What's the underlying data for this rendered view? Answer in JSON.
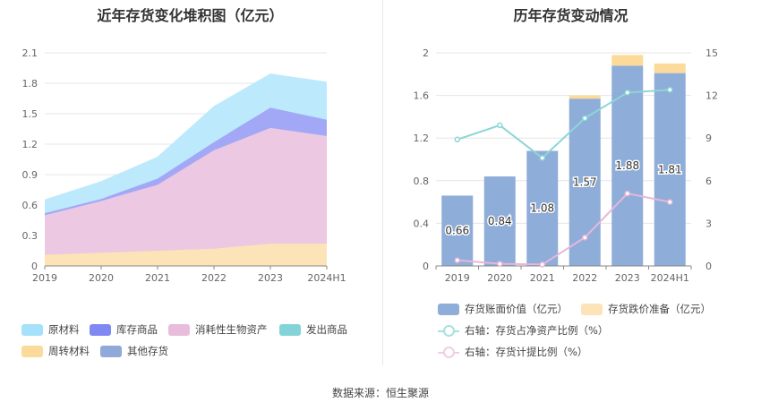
{
  "left": {
    "title": "近年存货变化堆积图（亿元）",
    "legend": [
      {
        "name": "原材料",
        "color": "#a6e1fb"
      },
      {
        "name": "库存商品",
        "color": "#8088f2"
      },
      {
        "name": "消耗性生物资产",
        "color": "#e8bddb"
      },
      {
        "name": "发出商品",
        "color": "#83d4d9"
      },
      {
        "name": "周转材料",
        "color": "#fcdb9a"
      },
      {
        "name": "其他存货",
        "color": "#8fa9d9"
      }
    ]
  },
  "right": {
    "title": "历年存货变动情况",
    "legend": [
      {
        "name": "存货账面价值（亿元）",
        "color": "#8fadd9"
      },
      {
        "name": "存货跌价准备（亿元）",
        "color": "#fde3b8"
      },
      {
        "name": "右轴：存货占净资产比例（%）",
        "color": "#8dd6d6"
      },
      {
        "name": "右轴：存货计提比例（%）",
        "color": "#e7b7d7"
      }
    ]
  },
  "source": "数据来源：恒生聚源",
  "chart_data": [
    {
      "type": "area",
      "title": "近年存货变化堆积图（亿元）",
      "categories": [
        "2019",
        "2020",
        "2021",
        "2022",
        "2023",
        "2024H1"
      ],
      "ylim": [
        0,
        2.1
      ],
      "yticks": [
        "0",
        "0.3",
        "0.6",
        "0.9",
        "1.2",
        "1.5",
        "1.8",
        "2.1"
      ],
      "stacked": true,
      "series": [
        {
          "name": "周转材料",
          "color": "#fde3b8",
          "values": [
            0.11,
            0.13,
            0.15,
            0.17,
            0.22,
            0.22
          ]
        },
        {
          "name": "消耗性生物资产",
          "color": "#ecc8e2",
          "values": [
            0.39,
            0.51,
            0.65,
            0.97,
            1.14,
            1.06
          ]
        },
        {
          "name": "库存商品",
          "color": "#a3a8f6",
          "values": [
            0.02,
            0.02,
            0.06,
            0.08,
            0.2,
            0.16
          ]
        },
        {
          "name": "原材料",
          "color": "#bde9fd",
          "values": [
            0.13,
            0.17,
            0.21,
            0.35,
            0.33,
            0.37
          ]
        }
      ]
    },
    {
      "type": "bar",
      "title": "历年存货变动情况",
      "categories": [
        "2019",
        "2020",
        "2021",
        "2022",
        "2023",
        "2024H1"
      ],
      "ylim": [
        0,
        2
      ],
      "yticks": [
        "0",
        "0.4",
        "0.8",
        "1.2",
        "1.6",
        "2"
      ],
      "y2lim": [
        0,
        15
      ],
      "y2ticks": [
        "0",
        "3",
        "6",
        "9",
        "12",
        "15"
      ],
      "series": [
        {
          "name": "存货账面价值（亿元）",
          "color": "#8fadd9",
          "values": [
            0.66,
            0.84,
            1.08,
            1.57,
            1.88,
            1.81
          ],
          "labels": [
            "0.66",
            "0.84",
            "1.08",
            "1.57",
            "1.88",
            "1.81"
          ]
        },
        {
          "name": "存货跌价准备（亿元）",
          "color": "#fcdb9a",
          "values": [
            0,
            0,
            0,
            0.03,
            0.1,
            0.09
          ]
        },
        {
          "name": "右轴：存货占净资产比例（%）",
          "color": "#8dd6d6",
          "axis": "right",
          "values": [
            8.9,
            9.9,
            7.6,
            10.4,
            12.2,
            12.4
          ]
        },
        {
          "name": "右轴：存货计提比例（%）",
          "color": "#e7b7d7",
          "axis": "right",
          "values": [
            0.4,
            0.15,
            0.1,
            2.0,
            5.1,
            4.5
          ]
        }
      ]
    }
  ]
}
